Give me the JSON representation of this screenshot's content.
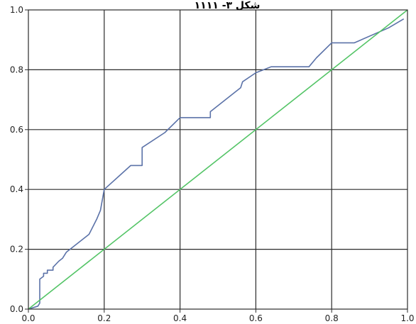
{
  "chart_data": {
    "type": "line",
    "title": "",
    "xlabel": "",
    "ylabel": "",
    "xlim": [
      0,
      1
    ],
    "ylim": [
      0,
      1
    ],
    "x_ticks": [
      "0.0",
      "0.2",
      "0.4",
      "0.6",
      "0.8",
      "1.0"
    ],
    "y_ticks": [
      "0.0",
      "0.2",
      "0.4",
      "0.6",
      "0.8",
      "1.0"
    ],
    "grid": true,
    "legend": "none",
    "series": [
      {
        "color": "#5b72a8",
        "x": [
          0.0,
          0.0,
          0.025,
          0.03,
          0.03,
          0.04,
          0.04,
          0.05,
          0.05,
          0.065,
          0.065,
          0.08,
          0.09,
          0.1,
          0.16,
          0.18,
          0.19,
          0.2,
          0.27,
          0.3,
          0.3,
          0.36,
          0.4,
          0.48,
          0.48,
          0.56,
          0.565,
          0.6,
          0.64,
          0.74,
          0.76,
          0.8,
          0.86,
          0.95,
          0.99
        ],
        "y": [
          0.0,
          0.0,
          0.01,
          0.02,
          0.1,
          0.11,
          0.12,
          0.12,
          0.13,
          0.13,
          0.14,
          0.16,
          0.17,
          0.19,
          0.25,
          0.3,
          0.33,
          0.4,
          0.48,
          0.48,
          0.54,
          0.59,
          0.64,
          0.64,
          0.66,
          0.74,
          0.76,
          0.79,
          0.81,
          0.81,
          0.84,
          0.89,
          0.89,
          0.94,
          0.97
        ]
      },
      {
        "color": "#53c466",
        "x": [
          0.0,
          1.0
        ],
        "y": [
          0.0,
          1.0
        ]
      }
    ]
  },
  "header_text": "شکل ۳- ۱۱۱۱"
}
